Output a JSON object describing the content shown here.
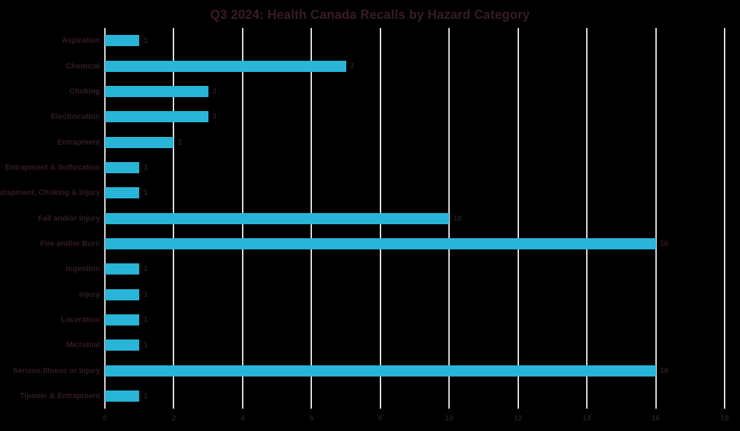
{
  "title": "Q3 2024: Health Canada Recalls by Hazard Category",
  "colors": {
    "background": "#000000",
    "bar": "#29b5d8",
    "gridline": "#eee1e1",
    "title_text": "#3a1c23",
    "label_text": "#331c25",
    "value_text": "#2d1a20",
    "tick_text": "#281a1d"
  },
  "chart_data": {
    "type": "bar",
    "orientation": "horizontal",
    "title": "Q3 2024: Health Canada Recalls by Hazard Category",
    "categories": [
      "Aspiration",
      "Chemical",
      "Choking",
      "Electrocution",
      "Entrapment",
      "Entrapment & Suffocation",
      "Entrapment, Choking & Injury",
      "Fall and/or Injury",
      "Fire and/or Burn",
      "Ingestion",
      "Injury",
      "Laceration",
      "Microbial",
      "Serious Illness or Injury",
      "Tipover & Entrapment"
    ],
    "values": [
      1,
      7,
      3,
      3,
      2,
      1,
      1,
      10,
      16,
      1,
      1,
      1,
      1,
      16,
      1
    ],
    "xlabel": "",
    "ylabel": "",
    "xlim": [
      0,
      18
    ],
    "xticks": [
      0,
      2,
      4,
      6,
      8,
      10,
      12,
      14,
      16,
      18
    ],
    "grid": "vertical-only",
    "data_labels": true,
    "legend": "none"
  }
}
